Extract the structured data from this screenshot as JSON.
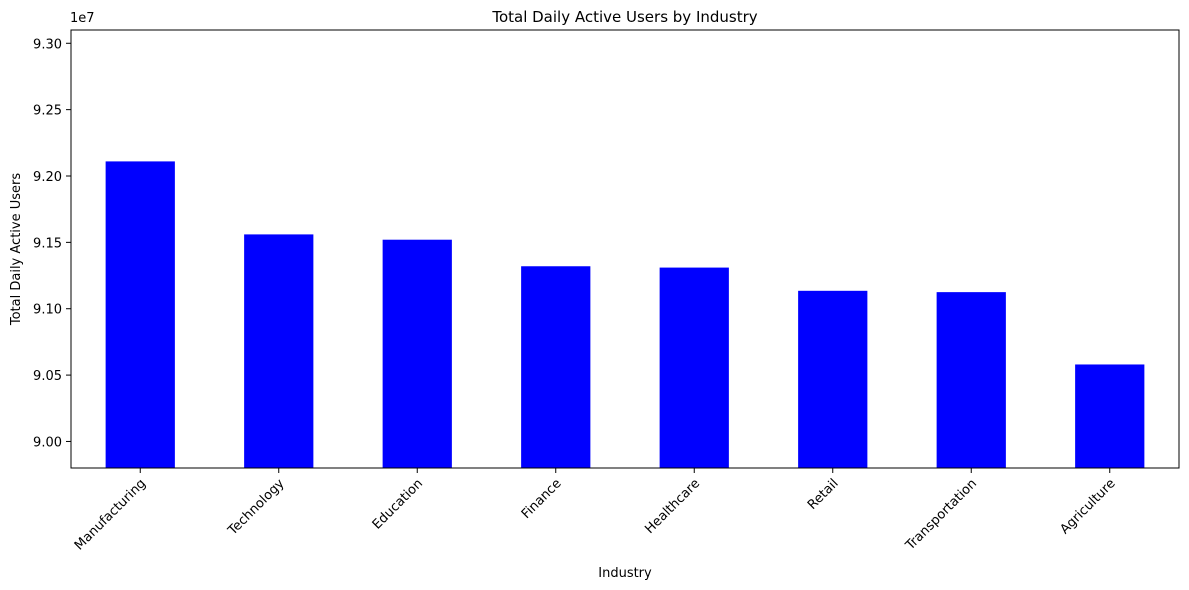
{
  "chart_data": {
    "type": "bar",
    "title": "Total Daily Active Users by Industry",
    "xlabel": "Industry",
    "ylabel": "Total Daily Active Users",
    "y_offset_label": "1e7",
    "categories": [
      "Manufacturing",
      "Technology",
      "Education",
      "Finance",
      "Healthcare",
      "Retail",
      "Transportation",
      "Agriculture"
    ],
    "values": [
      92110000,
      91560000,
      91520000,
      91320000,
      91310000,
      91135000,
      91125000,
      90580000
    ],
    "ylim": [
      89800000,
      93100000
    ],
    "yticks": [
      90000000,
      90500000,
      91000000,
      91500000,
      92000000,
      92500000,
      93000000
    ],
    "ytick_labels": [
      "9.00",
      "9.05",
      "9.10",
      "9.15",
      "9.20",
      "9.25",
      "9.30"
    ],
    "bar_color": "#0000ff",
    "grid": false,
    "legend": "none"
  }
}
